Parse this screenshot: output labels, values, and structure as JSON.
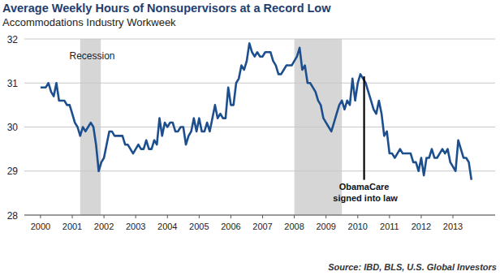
{
  "chart_data": {
    "type": "line",
    "title": "Average Weekly Hours of Nonsupervisors at a Record Low",
    "subtitle": "Accommodations Industry Workweek",
    "source": "Source: IBD, BLS, U.S. Global Investors",
    "color": "#1d4f8f",
    "grid": true,
    "xlim": [
      1999.49,
      2014.33
    ],
    "xticks": [
      2000,
      2001,
      2002,
      2003,
      2004,
      2005,
      2006,
      2007,
      2008,
      2009,
      2010,
      2011,
      2012,
      2013
    ],
    "ylim": [
      28,
      32
    ],
    "yticks": [
      28,
      29,
      30,
      31,
      32
    ],
    "recessions": [
      {
        "label": "Recession",
        "start": 2001.25,
        "end": 2001.9
      },
      {
        "start": 2008.0,
        "end": 2009.5
      }
    ],
    "annotations": [
      {
        "text": "ObamaCare signed into law",
        "x": 2010.2,
        "y_from": 28.8,
        "y_to": 31.15
      }
    ],
    "x": [
      2000,
      2000.083,
      2000.167,
      2000.25,
      2000.333,
      2000.417,
      2000.5,
      2000.583,
      2000.667,
      2000.75,
      2000.833,
      2000.917,
      2001,
      2001.083,
      2001.167,
      2001.25,
      2001.333,
      2001.417,
      2001.5,
      2001.583,
      2001.667,
      2001.75,
      2001.833,
      2001.917,
      2002,
      2002.083,
      2002.167,
      2002.25,
      2002.333,
      2002.417,
      2002.5,
      2002.583,
      2002.667,
      2002.75,
      2002.833,
      2002.917,
      2003,
      2003.083,
      2003.167,
      2003.25,
      2003.333,
      2003.417,
      2003.5,
      2003.583,
      2003.667,
      2003.75,
      2003.833,
      2003.917,
      2004,
      2004.083,
      2004.167,
      2004.25,
      2004.333,
      2004.417,
      2004.5,
      2004.583,
      2004.667,
      2004.75,
      2004.833,
      2004.917,
      2005,
      2005.083,
      2005.167,
      2005.25,
      2005.333,
      2005.417,
      2005.5,
      2005.583,
      2005.667,
      2005.75,
      2005.833,
      2005.917,
      2006,
      2006.083,
      2006.167,
      2006.25,
      2006.333,
      2006.417,
      2006.5,
      2006.583,
      2006.667,
      2006.75,
      2006.833,
      2006.917,
      2007,
      2007.083,
      2007.167,
      2007.25,
      2007.333,
      2007.417,
      2007.5,
      2007.583,
      2007.667,
      2007.75,
      2007.833,
      2007.917,
      2008,
      2008.083,
      2008.167,
      2008.25,
      2008.333,
      2008.417,
      2008.5,
      2008.583,
      2008.667,
      2008.75,
      2008.833,
      2008.917,
      2009,
      2009.083,
      2009.167,
      2009.25,
      2009.333,
      2009.417,
      2009.5,
      2009.583,
      2009.667,
      2009.75,
      2009.833,
      2009.917,
      2010,
      2010.083,
      2010.167,
      2010.25,
      2010.333,
      2010.417,
      2010.5,
      2010.583,
      2010.667,
      2010.75,
      2010.833,
      2010.917,
      2011,
      2011.083,
      2011.167,
      2011.25,
      2011.333,
      2011.417,
      2011.5,
      2011.583,
      2011.667,
      2011.75,
      2011.833,
      2011.917,
      2012,
      2012.083,
      2012.167,
      2012.25,
      2012.333,
      2012.417,
      2012.5,
      2012.583,
      2012.667,
      2012.75,
      2012.833,
      2012.917,
      2013,
      2013.083,
      2013.167,
      2013.25,
      2013.333,
      2013.417,
      2013.5,
      2013.583
    ],
    "values": [
      30.9,
      30.9,
      30.9,
      31.0,
      30.8,
      30.7,
      31.0,
      30.6,
      30.6,
      30.6,
      30.5,
      30.5,
      30.3,
      30.1,
      30.0,
      29.8,
      30.0,
      29.9,
      30.0,
      30.1,
      30.0,
      29.6,
      29.0,
      29.2,
      29.3,
      29.6,
      29.9,
      29.9,
      29.8,
      29.8,
      29.8,
      29.8,
      29.6,
      29.6,
      29.5,
      29.4,
      29.5,
      29.6,
      29.5,
      29.5,
      29.7,
      29.5,
      29.5,
      29.7,
      29.6,
      30.2,
      29.8,
      30.1,
      30.0,
      30.1,
      30.1,
      29.9,
      29.9,
      30.0,
      30.0,
      29.6,
      29.8,
      29.9,
      30.2,
      29.9,
      30.2,
      29.9,
      29.9,
      30.1,
      29.9,
      30.2,
      30.5,
      30.2,
      30.3,
      30.2,
      30.2,
      30.9,
      30.5,
      30.5,
      31.0,
      31.1,
      31.4,
      31.3,
      31.5,
      31.9,
      31.7,
      31.6,
      31.7,
      31.6,
      31.6,
      31.7,
      31.7,
      31.7,
      31.5,
      31.4,
      31.2,
      31.2,
      31.3,
      31.4,
      31.4,
      31.4,
      31.5,
      31.6,
      31.8,
      31.3,
      31.4,
      31.0,
      31.0,
      30.9,
      30.8,
      30.6,
      30.5,
      30.2,
      30.1,
      30.0,
      29.9,
      30.1,
      30.3,
      30.5,
      30.6,
      30.4,
      30.6,
      30.5,
      31.1,
      30.6,
      31.0,
      31.2,
      31.1,
      31.0,
      30.8,
      30.6,
      30.4,
      30.3,
      30.6,
      30.3,
      29.8,
      29.9,
      29.4,
      29.4,
      29.3,
      29.4,
      29.5,
      29.4,
      29.4,
      29.4,
      29.4,
      29.2,
      29.2,
      29.0,
      29.3,
      28.9,
      29.3,
      29.3,
      29.5,
      29.3,
      29.3,
      29.4,
      29.5,
      29.4,
      29.5,
      29.2,
      29.1,
      29.0,
      29.7,
      29.5,
      29.3,
      29.3,
      29.2,
      28.8
    ]
  }
}
